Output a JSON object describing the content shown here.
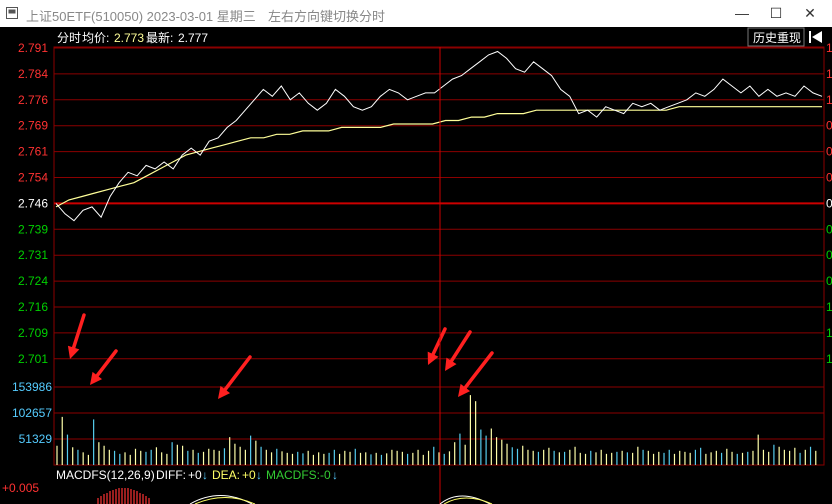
{
  "window": {
    "title": "上证50ETF(510050) 2023-03-01 星期三",
    "hint": "左右方向键切换分时",
    "minimize_glyph": "—",
    "maximize_glyph": "☐",
    "close_glyph": "✕"
  },
  "header": {
    "mode": "分时",
    "avg_label": "均价:",
    "avg_value": "2.773",
    "latest_label": "最新:",
    "latest_value": "2.777",
    "history_button": "历史重现",
    "back_icon": "back-to-start-icon"
  },
  "price_axis": {
    "ticks": [
      "2.791",
      "2.784",
      "2.776",
      "2.769",
      "2.761",
      "2.754",
      "2.746",
      "2.739",
      "2.731",
      "2.724",
      "2.716",
      "2.709",
      "2.701"
    ],
    "prev_close": "2.746",
    "right_labels": [
      "1",
      "1",
      "1",
      "0",
      "0",
      "0",
      "0",
      "0",
      "0",
      "0",
      "1",
      "1",
      "1"
    ]
  },
  "volume_axis": {
    "ticks": [
      "153986",
      "102657",
      "51329"
    ]
  },
  "macd": {
    "label": "MACDFS(12,26,9)",
    "diff_label": "DIFF:",
    "diff_value": "+0",
    "dea_label": "DEA:",
    "dea_value": "+0",
    "macdfs_label": "MACDFS:",
    "macdfs_value": "-0",
    "axis_top": "+0.005"
  },
  "colors": {
    "up": "#ff3232",
    "down": "#00d000",
    "price_line": "#ffffff",
    "avg_line": "#ffff99",
    "grid": "#8b0000",
    "volume_up": "#ffffaa",
    "volume_down": "#55ccee",
    "axis_text_neutral": "#ffffff",
    "volume_text": "#55ccff",
    "arrow": "#ff2020"
  },
  "chart_data": {
    "type": "line",
    "prev_close": 2.746,
    "ylim": [
      2.701,
      2.791
    ],
    "price_series": [
      2.746,
      2.743,
      2.741,
      2.744,
      2.745,
      2.742,
      2.748,
      2.752,
      2.755,
      2.754,
      2.757,
      2.756,
      2.758,
      2.756,
      2.76,
      2.762,
      2.76,
      2.764,
      2.765,
      2.768,
      2.77,
      2.773,
      2.776,
      2.779,
      2.777,
      2.78,
      2.776,
      2.778,
      2.775,
      2.773,
      2.775,
      2.779,
      2.777,
      2.774,
      2.773,
      2.774,
      2.777,
      2.779,
      2.778,
      2.776,
      2.777,
      2.778,
      2.778,
      2.78,
      2.782,
      2.783,
      2.785,
      2.787,
      2.789,
      2.79,
      2.788,
      2.785,
      2.784,
      2.787,
      2.785,
      2.783,
      2.779,
      2.777,
      2.772,
      2.773,
      2.771,
      2.774,
      2.773,
      2.772,
      2.775,
      2.774,
      2.775,
      2.773,
      2.774,
      2.775,
      2.776,
      2.778,
      2.777,
      2.779,
      2.782,
      2.78,
      2.778,
      2.78,
      2.777,
      2.779,
      2.777,
      2.778,
      2.777,
      2.78,
      2.778,
      2.777
    ],
    "avg_series": [
      2.745,
      2.747,
      2.748,
      2.749,
      2.75,
      2.751,
      2.752,
      2.754,
      2.756,
      2.758,
      2.76,
      2.761,
      2.762,
      2.763,
      2.764,
      2.765,
      2.765,
      2.766,
      2.766,
      2.767,
      2.767,
      2.767,
      2.768,
      2.768,
      2.768,
      2.768,
      2.769,
      2.769,
      2.769,
      2.769,
      2.77,
      2.77,
      2.771,
      2.771,
      2.772,
      2.772,
      2.772,
      2.773,
      2.773,
      2.773,
      2.773,
      2.773,
      2.773,
      2.773,
      2.773,
      2.773,
      2.773,
      2.773,
      2.774,
      2.774,
      2.774,
      2.774,
      2.774,
      2.774,
      2.774,
      2.774,
      2.774,
      2.774,
      2.774,
      2.774
    ],
    "volume_max": 153986,
    "volumes": [
      38000,
      95000,
      60000,
      35000,
      30000,
      25000,
      20000,
      90000,
      45000,
      38000,
      30000,
      28000,
      22000,
      25000,
      20000,
      32000,
      28000,
      26000,
      30000,
      35000,
      25000,
      22000,
      45000,
      40000,
      38000,
      28000,
      30000,
      24000,
      26000,
      32000,
      30000,
      28000,
      33000,
      55000,
      42000,
      36000,
      30000,
      58000,
      48000,
      36000,
      30000,
      25000,
      32000,
      27000,
      24000,
      22000,
      26000,
      23000,
      28000,
      20000,
      25000,
      22000,
      24000,
      30000,
      22000,
      28000,
      26000,
      32000,
      24000,
      25000,
      21000,
      24000,
      20000,
      23000,
      30000,
      28000,
      26000,
      22000,
      24000,
      30000,
      20000,
      28000,
      36000,
      25000,
      22000,
      27000,
      45000,
      62000,
      40000,
      138000,
      126000,
      70000,
      58000,
      72000,
      55000,
      50000,
      42000,
      35000,
      32000,
      38000,
      30000,
      28000,
      26000,
      30000,
      34000,
      28000,
      25000,
      26000,
      30000,
      36000,
      24000,
      22000,
      28000,
      25000,
      30000,
      22000,
      24000,
      26000,
      28000,
      25000,
      24000,
      36000,
      30000,
      28000,
      22000,
      26000,
      24000,
      30000,
      22000,
      28000,
      26000,
      24000,
      30000,
      34000,
      22000,
      25000,
      28000,
      24000,
      32000,
      26000,
      22000,
      24000,
      26000,
      28000,
      60000,
      30000,
      26000,
      40000,
      36000,
      30000,
      28000,
      34000,
      24000,
      30000,
      36000,
      28000
    ],
    "highlight_arrows": [
      "2.701",
      "153986",
      "102657",
      "2.701",
      "2.701",
      "102657"
    ]
  }
}
